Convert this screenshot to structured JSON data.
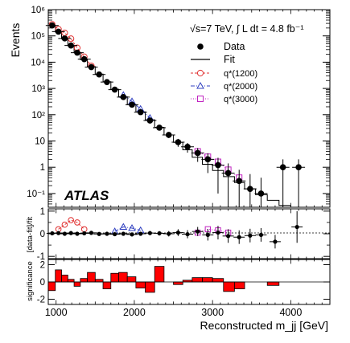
{
  "chart_data": [
    {
      "type": "scatter",
      "panel": "main",
      "title": "",
      "experiment_label": "ATLAS",
      "energy_text": "√s=7 TeV, ∫ L dt = 4.8 fb⁻¹",
      "ylabel": "Events",
      "xlabel": "Reconstructed m_jj [GeV]",
      "yscale": "log",
      "xlim": [
        900,
        4500
      ],
      "ylim": [
        0.03,
        1000000
      ],
      "y_tick_labels": [
        "10⁻¹",
        "1",
        "10",
        "10²",
        "10³",
        "10⁴",
        "10⁵",
        "10⁶"
      ],
      "legend": {
        "position": "top-right",
        "entries": [
          {
            "name": "Data",
            "style": "filled-circle",
            "color": "#000000"
          },
          {
            "name": "Fit",
            "style": "line",
            "color": "#000000"
          },
          {
            "name": "q*(1200)",
            "style": "open-circle-dashed",
            "color": "#e03030"
          },
          {
            "name": "q*(2000)",
            "style": "open-triangle-dotdash",
            "color": "#3040c0"
          },
          {
            "name": "q*(3000)",
            "style": "open-square-dotted",
            "color": "#c020c0"
          }
        ]
      },
      "data": {
        "x": [
          950,
          1030,
          1110,
          1190,
          1270,
          1360,
          1450,
          1550,
          1650,
          1750,
          1860,
          1970,
          2080,
          2200,
          2320,
          2440,
          2560,
          2680,
          2810,
          2940,
          3070,
          3200,
          3340,
          3480,
          3620,
          3900,
          4100
        ],
        "y": [
          250000,
          145000,
          80000,
          43000,
          23000,
          13000,
          6500,
          3400,
          1750,
          900,
          470,
          240,
          125,
          60,
          32,
          17,
          9,
          6,
          3.5,
          2,
          1.2,
          0.6,
          0.3,
          0.15,
          0.1,
          1,
          1
        ],
        "yerr": [
          500,
          380,
          280,
          210,
          150,
          114,
          80,
          58,
          42,
          30,
          22,
          15,
          11,
          8,
          5.7,
          4.1,
          3,
          2.4,
          1.9,
          1.4,
          1.1,
          0.8,
          0.5,
          0.4,
          0.3,
          1,
          1
        ]
      },
      "fit_bin_edges": [
        900,
        990,
        1070,
        1150,
        1230,
        1310,
        1400,
        1500,
        1600,
        1700,
        1800,
        1910,
        2020,
        2140,
        2260,
        2380,
        2500,
        2620,
        2740,
        2870,
        3000,
        3140,
        3280,
        3410,
        3550,
        3700,
        3850,
        4000,
        4150,
        4300
      ],
      "fit_bin_values": [
        250000,
        140000,
        78000,
        42000,
        23000,
        12500,
        6800,
        3500,
        1800,
        930,
        480,
        245,
        128,
        64,
        33,
        17,
        8.8,
        4.6,
        2.4,
        1.3,
        0.75,
        0.44,
        0.26,
        0.15,
        0.09,
        0.055,
        0.035,
        0.022,
        0.014
      ],
      "signals": [
        {
          "name": "q*(1200)",
          "x": [
            950,
            1030,
            1110,
            1190,
            1270,
            1360,
            1450
          ],
          "y": [
            275000,
            180000,
            130000,
            78000,
            35000,
            16000,
            7200
          ]
        },
        {
          "name": "q*(2000)",
          "x": [
            1860,
            1970,
            2080,
            2200
          ],
          "y": [
            560,
            320,
            165,
            75
          ]
        },
        {
          "name": "q*(3000)",
          "x": [
            2810,
            2940,
            3070,
            3200,
            3340
          ],
          "y": [
            4,
            2.5,
            1.6,
            0.8,
            0.4
          ]
        }
      ]
    },
    {
      "type": "scatter",
      "panel": "ratio",
      "ylabel": "[data-fit]/fit",
      "ylim": [
        -1.1,
        1.1
      ],
      "y_tick_labels": [
        "-1",
        "0",
        "1"
      ],
      "data": {
        "x": [
          950,
          1030,
          1110,
          1190,
          1270,
          1360,
          1450,
          1550,
          1650,
          1750,
          1860,
          1970,
          2080,
          2200,
          2320,
          2440,
          2560,
          2680,
          2810,
          2940,
          3070,
          3200,
          3340,
          3480,
          3620,
          3800,
          4080
        ],
        "y": [
          0.02,
          0.03,
          0.0,
          0.03,
          0.0,
          0.02,
          0.04,
          -0.01,
          0.0,
          -0.02,
          0.0,
          -0.03,
          0.0,
          0.03,
          0.02,
          0.0,
          0.05,
          -0.02,
          0.1,
          -0.05,
          0.05,
          -0.1,
          -0.15,
          -0.08,
          -0.05,
          -0.35,
          0.3
        ],
        "yerr": [
          0.01,
          0.01,
          0.01,
          0.01,
          0.01,
          0.01,
          0.01,
          0.02,
          0.02,
          0.03,
          0.04,
          0.05,
          0.06,
          0.08,
          0.1,
          0.12,
          0.15,
          0.18,
          0.2,
          0.25,
          0.3,
          0.3,
          0.3,
          0.3,
          0.3,
          0.3,
          0.7
        ]
      },
      "signals": [
        {
          "name": "q*(1200)",
          "x": [
            1030,
            1110,
            1190,
            1270,
            1360
          ],
          "y": [
            0.2,
            0.4,
            0.6,
            0.5,
            0.2
          ]
        },
        {
          "name": "q*(2000)",
          "x": [
            1750,
            1860,
            1970,
            2080
          ],
          "y": [
            0.1,
            0.3,
            0.25,
            0.15
          ]
        },
        {
          "name": "q*(3000)",
          "x": [
            2810,
            2940,
            3070,
            3200
          ],
          "y": [
            0.05,
            0.2,
            0.15,
            0.05
          ]
        }
      ]
    },
    {
      "type": "bar",
      "panel": "significance",
      "ylabel": "significance",
      "xlabel": "Reconstructed m_jj [GeV]",
      "ylim": [
        -2.6,
        2.6
      ],
      "y_tick_labels": [
        "-2",
        "0",
        "2"
      ],
      "x_tick_labels": [
        "1000",
        "2000",
        "3000",
        "4000"
      ],
      "bin_edges": [
        900,
        990,
        1070,
        1150,
        1230,
        1310,
        1400,
        1500,
        1600,
        1700,
        1800,
        1910,
        2020,
        2140,
        2260,
        2380,
        2500,
        2620,
        2740,
        2870,
        3000,
        3140,
        3280,
        3410,
        3550,
        3700,
        3850,
        4000,
        4150,
        4300
      ],
      "values": [
        -1.0,
        1.4,
        0.8,
        0.3,
        -0.5,
        0.4,
        1.1,
        0.3,
        -0.8,
        1.0,
        1.1,
        0.6,
        -0.7,
        -1.2,
        1.8,
        0.0,
        -0.3,
        0.2,
        0.5,
        0.5,
        0.4,
        -1.1,
        -0.8,
        0.0,
        0.0,
        -0.4,
        0.0,
        0.0,
        0.0
      ],
      "fill_color": "#ff0000"
    }
  ]
}
